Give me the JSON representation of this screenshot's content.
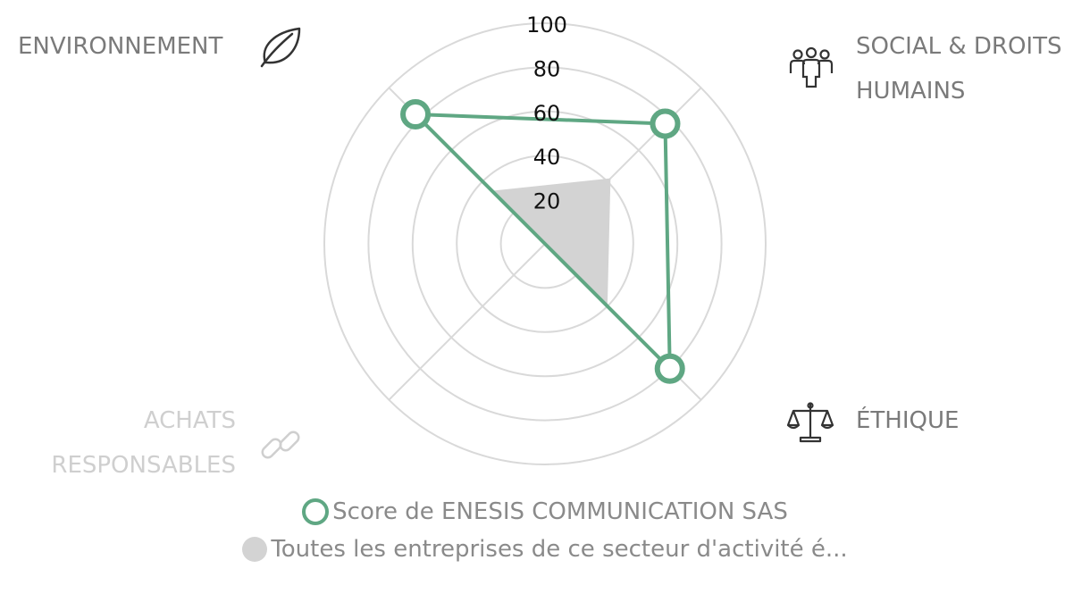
{
  "chart_data": {
    "type": "radar",
    "categories": [
      "ENVIRONNEMENT",
      "SOCIAL & DROITS HUMAINS",
      "ÉTHIQUE",
      "ACHATS RESPONSABLES"
    ],
    "series": [
      {
        "name": "Score de ENESIS COMMUNICATION SAS",
        "values": [
          83,
          77,
          80,
          0
        ],
        "color": "#5fa783",
        "style": "outline-with-ring-markers"
      },
      {
        "name": "Toutes les entreprises de ce secteur d'activité é...",
        "values": [
          34,
          42,
          40,
          0
        ],
        "color": "#d3d3d3",
        "style": "filled"
      }
    ],
    "radial_ticks": [
      "20",
      "40",
      "60",
      "80",
      "100"
    ],
    "rmax": 100,
    "grid": true,
    "legend_position": "bottom",
    "disabled_axis": "ACHATS RESPONSABLES"
  },
  "axes_labels": {
    "environment": [
      "ENVIRONNEMENT"
    ],
    "social": [
      "SOCIAL & DROITS",
      "HUMAINS"
    ],
    "ethics": [
      "ÉTHIQUE"
    ],
    "purchasing": [
      "ACHATS",
      "RESPONSABLES"
    ]
  },
  "icons": {
    "environment": "leaf-icon",
    "social": "people-group-icon",
    "ethics": "scales-icon",
    "purchasing": "chain-link-icon"
  },
  "legend": {
    "company": "Score de ENESIS COMMUNICATION SAS",
    "sector": "Toutes les entreprises de ce secteur d'activité é..."
  }
}
